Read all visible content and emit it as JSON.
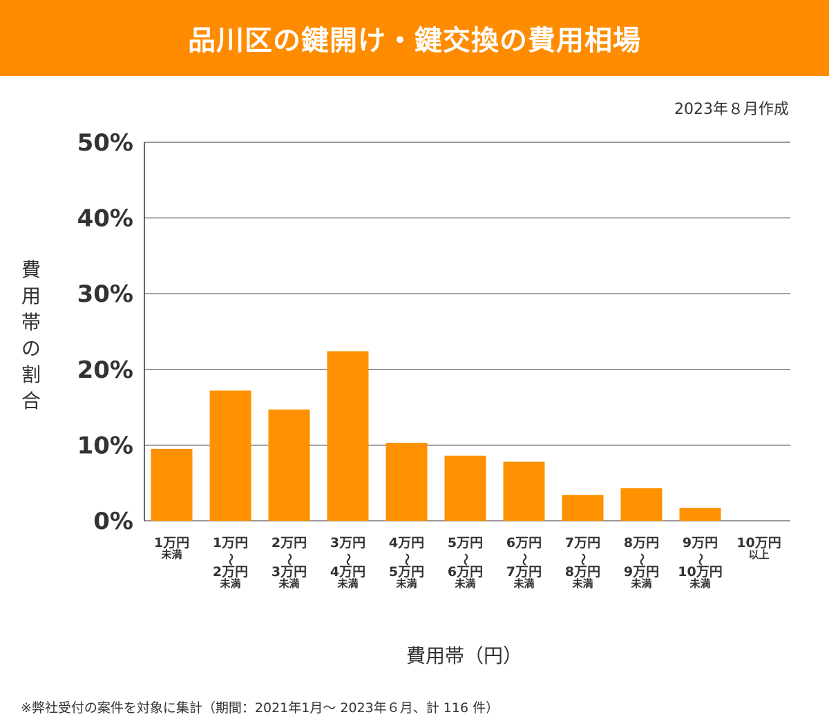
{
  "header": {
    "title": "品川区の鍵開け・鍵交換の費用相場"
  },
  "date_note": "2023年８月作成",
  "footnote": "※弊社受付の案件を対象に集計（期間：2021年1月～ 2023年６月、計 116 件）",
  "colors": {
    "accent": "#ff8c00",
    "bar": "#ff9100",
    "grid": "#333333"
  },
  "chart_data": {
    "type": "bar",
    "title": "品川区の鍵開け・鍵交換の費用相場",
    "xlabel": "費用帯（円）",
    "ylabel": "費用帯の割合",
    "ylim": [
      0,
      50
    ],
    "yticks": [
      0,
      10,
      20,
      30,
      40,
      50
    ],
    "ytick_labels": [
      "0%",
      "10%",
      "20%",
      "30%",
      "40%",
      "50%"
    ],
    "grid": true,
    "categories": [
      {
        "lines": [
          "1万円",
          "未満"
        ]
      },
      {
        "lines": [
          "1万円",
          "〜",
          "2万円",
          "未満"
        ]
      },
      {
        "lines": [
          "2万円",
          "〜",
          "3万円",
          "未満"
        ]
      },
      {
        "lines": [
          "3万円",
          "〜",
          "4万円",
          "未満"
        ]
      },
      {
        "lines": [
          "4万円",
          "〜",
          "5万円",
          "未満"
        ]
      },
      {
        "lines": [
          "5万円",
          "〜",
          "6万円",
          "未満"
        ]
      },
      {
        "lines": [
          "6万円",
          "〜",
          "7万円",
          "未満"
        ]
      },
      {
        "lines": [
          "7万円",
          "〜",
          "8万円",
          "未満"
        ]
      },
      {
        "lines": [
          "8万円",
          "〜",
          "9万円",
          "未満"
        ]
      },
      {
        "lines": [
          "9万円",
          "〜",
          "10万円",
          "未満"
        ]
      },
      {
        "lines": [
          "10万円",
          "以上"
        ]
      }
    ],
    "values": [
      9.5,
      17.2,
      14.7,
      22.4,
      10.3,
      8.6,
      7.8,
      3.4,
      4.3,
      1.7,
      0
    ]
  }
}
